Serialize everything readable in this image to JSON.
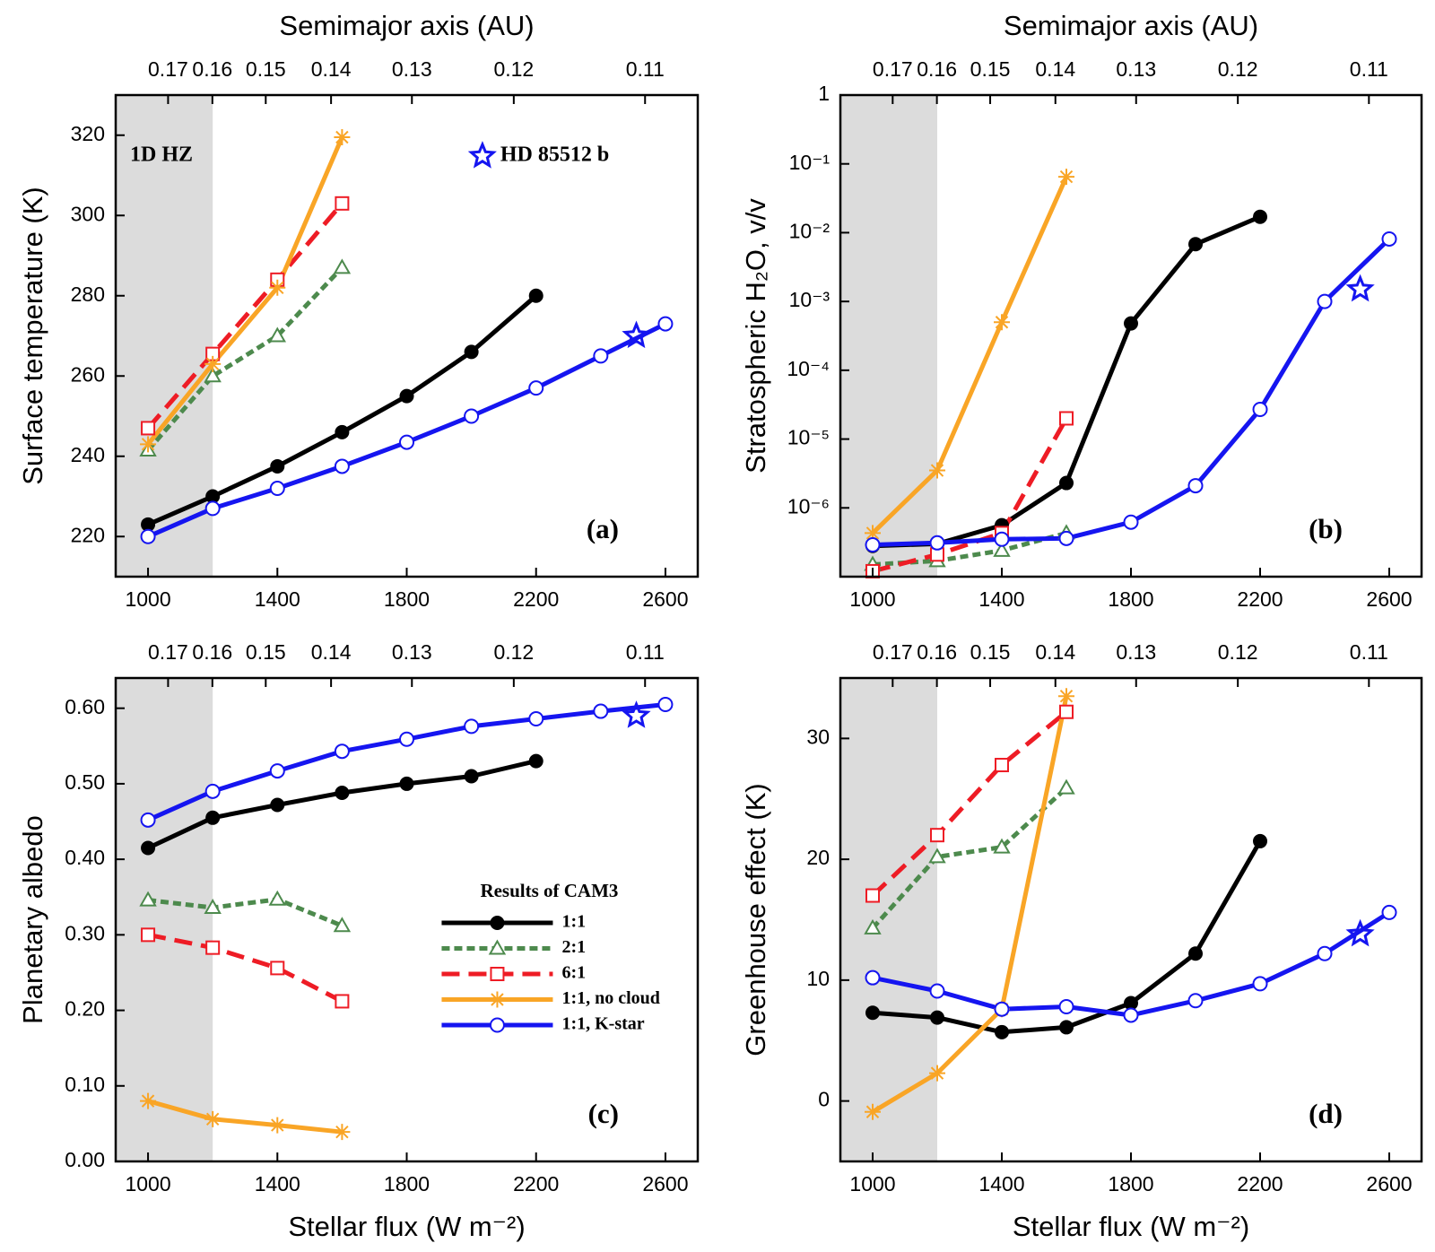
{
  "chart_data": [
    {
      "type": "line",
      "x2_label": "Semimajor axis (AU)",
      "y_label": "Surface temperature (K)",
      "panel_label": "(a)",
      "xlim": [
        900,
        2700
      ],
      "xticks": [
        1000,
        1400,
        1800,
        2200,
        2600
      ],
      "x2ticks": [
        {
          "value": 1062,
          "label": "0.17"
        },
        {
          "value": 1199,
          "label": "0.16"
        },
        {
          "value": 1364,
          "label": "0.15"
        },
        {
          "value": 1566,
          "label": "0.14"
        },
        {
          "value": 1816,
          "label": "0.13"
        },
        {
          "value": 2131,
          "label": "0.12"
        },
        {
          "value": 2537,
          "label": "0.11"
        }
      ],
      "ylim": [
        210,
        330
      ],
      "yticks": [
        220,
        240,
        260,
        280,
        300,
        320
      ],
      "log_y": false,
      "hz_shade": [
        900,
        1200
      ],
      "hz_label": "1D HZ",
      "planet": {
        "label": "HD 85512 b",
        "x": 2510,
        "y": 270,
        "color": "#1515f0"
      },
      "series": [
        {
          "color": "#000000",
          "marker": "circle-filled",
          "dash": "solid",
          "x": [
            1000,
            1200,
            1400,
            1600,
            1800,
            2000,
            2200
          ],
          "values": [
            223,
            230,
            237.5,
            246,
            255,
            266,
            280
          ]
        },
        {
          "color": "#4d8a4d",
          "marker": "triangle-open",
          "dash": "dotted",
          "x": [
            1000,
            1200,
            1400,
            1600
          ],
          "values": [
            241.5,
            260,
            270,
            287
          ]
        },
        {
          "color": "#ee1c25",
          "marker": "square-open",
          "dash": "dashed",
          "x": [
            1000,
            1200,
            1400,
            1600
          ],
          "values": [
            247,
            265.5,
            284,
            303
          ]
        },
        {
          "color": "#f9a526",
          "marker": "asterisk",
          "dash": "solid",
          "x": [
            1000,
            1200,
            1400,
            1600
          ],
          "values": [
            243,
            263,
            282,
            319.5
          ]
        },
        {
          "color": "#1515f0",
          "marker": "circle-open",
          "dash": "solid",
          "x": [
            1000,
            1200,
            1400,
            1600,
            1800,
            2000,
            2200,
            2400,
            2600
          ],
          "values": [
            220,
            227,
            232,
            237.5,
            243.5,
            250,
            257,
            265,
            273
          ]
        }
      ]
    },
    {
      "type": "line",
      "x2_label": "Semimajor axis (AU)",
      "y_label": "Stratospheric H₂O, v/v",
      "panel_label": "(b)",
      "xlim": [
        900,
        2700
      ],
      "xticks": [
        1000,
        1400,
        1800,
        2200,
        2600
      ],
      "x2ticks": [
        {
          "value": 1062,
          "label": "0.17"
        },
        {
          "value": 1199,
          "label": "0.16"
        },
        {
          "value": 1364,
          "label": "0.15"
        },
        {
          "value": 1566,
          "label": "0.14"
        },
        {
          "value": 1816,
          "label": "0.13"
        },
        {
          "value": 2131,
          "label": "0.12"
        },
        {
          "value": 2537,
          "label": "0.11"
        }
      ],
      "ylim": [
        1e-07,
        1
      ],
      "yticks": [
        {
          "value": 1e-06,
          "label": "10⁻⁶"
        },
        {
          "value": 1e-05,
          "label": "10⁻⁵"
        },
        {
          "value": 0.0001,
          "label": "10⁻⁴"
        },
        {
          "value": 0.001,
          "label": "10⁻³"
        },
        {
          "value": 0.01,
          "label": "10⁻²"
        },
        {
          "value": 0.1,
          "label": "10⁻¹"
        },
        1
      ],
      "log_y": true,
      "hz_shade": [
        900,
        1200
      ],
      "planet": {
        "x": 2510,
        "y": 0.0015,
        "color": "#1515f0"
      },
      "series": [
        {
          "color": "#000000",
          "marker": "circle-filled",
          "dash": "solid",
          "x": [
            1000,
            1200,
            1400,
            1600,
            1800,
            2000,
            2200
          ],
          "values": [
            2.8e-07,
            3e-07,
            5.6e-07,
            2.3e-06,
            0.00048,
            0.0068,
            0.017
          ]
        },
        {
          "color": "#4d8a4d",
          "marker": "triangle-open",
          "dash": "dotted",
          "x": [
            1000,
            1200,
            1400,
            1600
          ],
          "values": [
            1.5e-07,
            1.7e-07,
            2.4e-07,
            4.3e-07
          ]
        },
        {
          "color": "#ee1c25",
          "marker": "square-open",
          "dash": "dashed",
          "x": [
            1000,
            1200,
            1400,
            1600
          ],
          "values": [
            1.2e-07,
            2.1e-07,
            4.3e-07,
            2e-05
          ]
        },
        {
          "color": "#f9a526",
          "marker": "asterisk",
          "dash": "solid",
          "x": [
            1000,
            1200,
            1400,
            1600
          ],
          "values": [
            4.3e-07,
            3.5e-06,
            0.0005,
            0.065
          ]
        },
        {
          "color": "#1515f0",
          "marker": "circle-open",
          "dash": "solid",
          "x": [
            1000,
            1200,
            1400,
            1600,
            1800,
            2000,
            2200,
            2400,
            2600
          ],
          "values": [
            2.9e-07,
            3.1e-07,
            3.5e-07,
            3.6e-07,
            6.2e-07,
            2.1e-06,
            2.7e-05,
            0.001,
            0.0081
          ]
        }
      ]
    },
    {
      "type": "line",
      "x_label": "Stellar flux (W m⁻²)",
      "y_label": "Planetary albedo",
      "panel_label": "(c)",
      "xlim": [
        900,
        2700
      ],
      "xticks": [
        1000,
        1400,
        1800,
        2200,
        2600
      ],
      "x2ticks": [
        {
          "value": 1062,
          "label": "0.17"
        },
        {
          "value": 1199,
          "label": "0.16"
        },
        {
          "value": 1364,
          "label": "0.15"
        },
        {
          "value": 1566,
          "label": "0.14"
        },
        {
          "value": 1816,
          "label": "0.13"
        },
        {
          "value": 2131,
          "label": "0.12"
        },
        {
          "value": 2537,
          "label": "0.11"
        }
      ],
      "ylim": [
        0,
        0.64
      ],
      "yticks": [
        {
          "value": 0,
          "label": "0.00"
        },
        {
          "value": 0.1,
          "label": "0.10"
        },
        {
          "value": 0.2,
          "label": "0.20"
        },
        {
          "value": 0.3,
          "label": "0.30"
        },
        {
          "value": 0.4,
          "label": "0.40"
        },
        {
          "value": 0.5,
          "label": "0.50"
        },
        {
          "value": 0.6,
          "label": "0.60"
        }
      ],
      "log_y": false,
      "hz_shade": [
        900,
        1200
      ],
      "planet": {
        "x": 2510,
        "y": 0.59,
        "color": "#1515f0"
      },
      "legend_title": "Results of CAM3",
      "series": [
        {
          "name": "1:1",
          "color": "#000000",
          "marker": "circle-filled",
          "dash": "solid",
          "x": [
            1000,
            1200,
            1400,
            1600,
            1800,
            2000,
            2200
          ],
          "values": [
            0.415,
            0.455,
            0.472,
            0.488,
            0.5,
            0.51,
            0.53
          ]
        },
        {
          "name": "2:1",
          "color": "#4d8a4d",
          "marker": "triangle-open",
          "dash": "dotted",
          "x": [
            1000,
            1200,
            1400,
            1600
          ],
          "values": [
            0.346,
            0.336,
            0.347,
            0.312
          ]
        },
        {
          "name": "6:1",
          "color": "#ee1c25",
          "marker": "square-open",
          "dash": "dashed",
          "x": [
            1000,
            1200,
            1400,
            1600
          ],
          "values": [
            0.3,
            0.283,
            0.256,
            0.212
          ]
        },
        {
          "name": "1:1, no cloud",
          "color": "#f9a526",
          "marker": "asterisk",
          "dash": "solid",
          "x": [
            1000,
            1200,
            1400,
            1600
          ],
          "values": [
            0.08,
            0.056,
            0.048,
            0.039
          ]
        },
        {
          "name": "1:1, K-star",
          "color": "#1515f0",
          "marker": "circle-open",
          "dash": "solid",
          "x": [
            1000,
            1200,
            1400,
            1600,
            1800,
            2000,
            2200,
            2400,
            2600
          ],
          "values": [
            0.452,
            0.49,
            0.517,
            0.543,
            0.559,
            0.576,
            0.586,
            0.596,
            0.605
          ]
        }
      ]
    },
    {
      "type": "line",
      "x_label": "Stellar flux (W m⁻²)",
      "y_label": "Greenhouse effect (K)",
      "panel_label": "(d)",
      "xlim": [
        900,
        2700
      ],
      "xticks": [
        1000,
        1400,
        1800,
        2200,
        2600
      ],
      "x2ticks": [
        {
          "value": 1062,
          "label": "0.17"
        },
        {
          "value": 1199,
          "label": "0.16"
        },
        {
          "value": 1364,
          "label": "0.15"
        },
        {
          "value": 1566,
          "label": "0.14"
        },
        {
          "value": 1816,
          "label": "0.13"
        },
        {
          "value": 2131,
          "label": "0.12"
        },
        {
          "value": 2537,
          "label": "0.11"
        }
      ],
      "ylim": [
        -5,
        35
      ],
      "yticks": [
        0,
        10,
        20,
        30
      ],
      "log_y": false,
      "hz_shade": [
        900,
        1200
      ],
      "planet": {
        "x": 2510,
        "y": 13.8,
        "color": "#1515f0"
      },
      "series": [
        {
          "color": "#000000",
          "marker": "circle-filled",
          "dash": "solid",
          "x": [
            1000,
            1200,
            1400,
            1600,
            1800,
            2000,
            2200
          ],
          "values": [
            7.3,
            6.9,
            5.7,
            6.1,
            8.1,
            12.2,
            21.5
          ]
        },
        {
          "color": "#4d8a4d",
          "marker": "triangle-open",
          "dash": "dotted",
          "x": [
            1000,
            1200,
            1400,
            1600
          ],
          "values": [
            14.3,
            20.2,
            21.0,
            25.9
          ]
        },
        {
          "color": "#ee1c25",
          "marker": "square-open",
          "dash": "dashed",
          "x": [
            1000,
            1200,
            1400,
            1600
          ],
          "values": [
            17.0,
            22.0,
            27.8,
            32.2
          ]
        },
        {
          "color": "#f9a526",
          "marker": "asterisk",
          "dash": "solid",
          "x": [
            1000,
            1200,
            1400,
            1600
          ],
          "values": [
            -0.9,
            2.3,
            7.6,
            33.5
          ]
        },
        {
          "color": "#1515f0",
          "marker": "circle-open",
          "dash": "solid",
          "x": [
            1000,
            1200,
            1400,
            1600,
            1800,
            2000,
            2200,
            2400,
            2600
          ],
          "values": [
            10.2,
            9.1,
            7.6,
            7.8,
            7.1,
            8.3,
            9.7,
            12.2,
            15.6
          ]
        }
      ]
    }
  ]
}
